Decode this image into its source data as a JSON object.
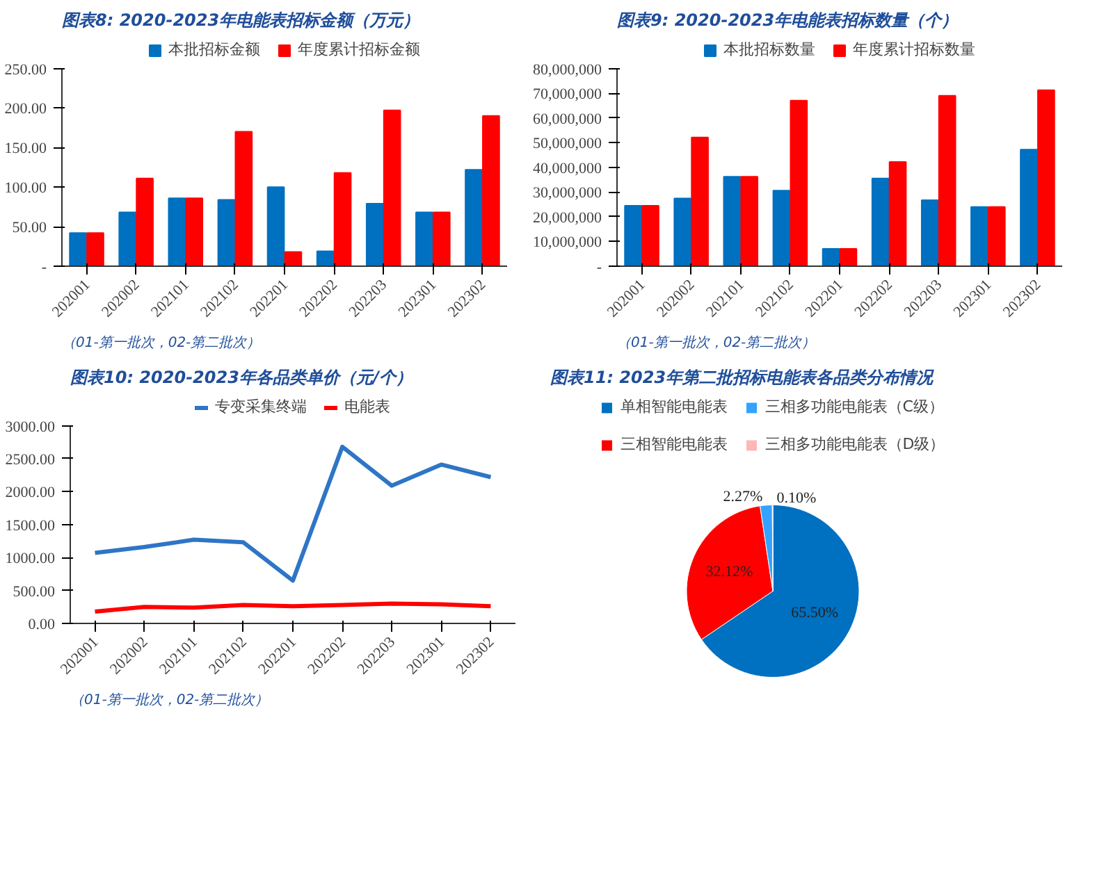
{
  "chart_data": [
    {
      "type": "bar",
      "title": "图表8:  2020-2023年电能表招标金额（万元）",
      "categories": [
        "202001",
        "202002",
        "202101",
        "202102",
        "202201",
        "202202",
        "202203",
        "202301",
        "202302"
      ],
      "series": [
        {
          "name": "本批招标金额",
          "color": "#0070c0",
          "values": [
            42,
            68,
            86,
            84,
            100,
            19,
            79,
            68,
            122
          ]
        },
        {
          "name": "年度累计招标金额",
          "color": "#ff0000",
          "values": [
            42,
            111,
            86,
            170,
            18,
            118,
            197,
            68,
            190
          ]
        }
      ],
      "ylim": [
        0,
        250
      ],
      "yticks": [
        {
          "value": 0,
          "label": "-"
        },
        {
          "value": 50,
          "label": "50.00"
        },
        {
          "value": 100,
          "label": "100.00"
        },
        {
          "value": 150,
          "label": "150.00"
        },
        {
          "value": 200,
          "label": "200.00"
        },
        {
          "value": 250,
          "label": "250.00"
        }
      ],
      "grid": false,
      "legend": "top",
      "annotations": [
        "（01-第一批次，02-第二批次）"
      ]
    },
    {
      "type": "bar",
      "title": "图表9:  2020-2023年电能表招标数量（个）",
      "categories": [
        "202001",
        "202002",
        "202101",
        "202102",
        "202201",
        "202202",
        "202203",
        "202301",
        "202302"
      ],
      "series": [
        {
          "name": "本批招标数量",
          "color": "#0070c0",
          "values": [
            24500000,
            27400000,
            36200000,
            30600000,
            7000000,
            35500000,
            26700000,
            24000000,
            47200000
          ]
        },
        {
          "name": "年度累计招标数量",
          "color": "#ff0000",
          "values": [
            24500000,
            52100000,
            36200000,
            67000000,
            7000000,
            42200000,
            69000000,
            24000000,
            71200000
          ]
        }
      ],
      "ylim": [
        0,
        80000000
      ],
      "yticks": [
        {
          "value": 0,
          "label": "-"
        },
        {
          "value": 10000000,
          "label": "10,000,000"
        },
        {
          "value": 20000000,
          "label": "20,000,000"
        },
        {
          "value": 30000000,
          "label": "30,000,000"
        },
        {
          "value": 40000000,
          "label": "40,000,000"
        },
        {
          "value": 50000000,
          "label": "50,000,000"
        },
        {
          "value": 60000000,
          "label": "60,000,000"
        },
        {
          "value": 70000000,
          "label": "70,000,000"
        },
        {
          "value": 80000000,
          "label": "80,000,000"
        }
      ],
      "grid": false,
      "legend": "top",
      "annotations": [
        "（01-第一批次，02-第二批次）"
      ]
    },
    {
      "type": "line",
      "title": "图表10:  2020-2023年各品类单价（元/个）",
      "categories": [
        "202001",
        "202002",
        "202101",
        "202102",
        "202201",
        "202202",
        "202203",
        "202301",
        "202302"
      ],
      "series": [
        {
          "name": "专变采集终端",
          "color": "#2e75c6",
          "values": [
            1070,
            1160,
            1270,
            1230,
            650,
            2680,
            2090,
            2410,
            2220
          ]
        },
        {
          "name": "电能表",
          "color": "#ff0000",
          "values": [
            180,
            250,
            240,
            280,
            260,
            280,
            300,
            290,
            260
          ]
        }
      ],
      "ylim": [
        0,
        3000
      ],
      "yticks": [
        {
          "value": 0,
          "label": "0.00"
        },
        {
          "value": 500,
          "label": "500.00"
        },
        {
          "value": 1000,
          "label": "1000.00"
        },
        {
          "value": 1500,
          "label": "1500.00"
        },
        {
          "value": 2000,
          "label": "2000.00"
        },
        {
          "value": 2500,
          "label": "2500.00"
        },
        {
          "value": 3000,
          "label": "3000.00"
        }
      ],
      "grid": false,
      "legend": "top",
      "marker": "none",
      "annotations": [
        "（01-第一批次，02-第二批次）"
      ]
    },
    {
      "type": "pie",
      "title": "图表11:  2023年第二批招标电能表各品类分布情况",
      "categories": [
        "单相智能电能表",
        "三相智能电能表",
        "三相多功能电能表（C级）",
        "三相多功能电能表（D级）"
      ],
      "values": [
        65.5,
        32.12,
        2.27,
        0.1
      ],
      "colors": [
        "#0070c0",
        "#ff0000",
        "#33a3ff",
        "#ffb6b6"
      ],
      "value_labels": [
        "65.50%",
        "32.12%",
        "2.27%",
        "0.10%"
      ],
      "legend": "top"
    }
  ]
}
